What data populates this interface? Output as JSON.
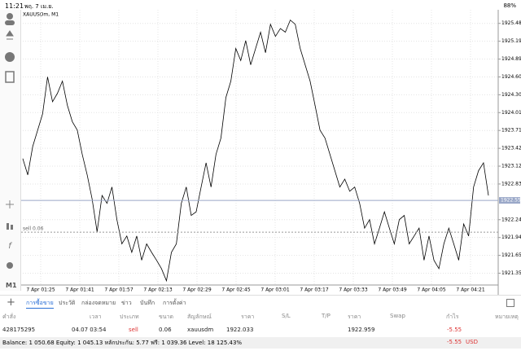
{
  "status_bar": {
    "time": "11:21",
    "date": "พฤ. 7 เม.ย.",
    "battery": "88%"
  },
  "toolbar": {
    "timeframe": "M1"
  },
  "chart": {
    "type": "line",
    "symbol": "XAUUSDm, M1",
    "color": "#000000",
    "values": [
      1923.25,
      1922.98,
      1923.45,
      1923.72,
      1923.99,
      1924.6,
      1924.19,
      1924.33,
      1924.53,
      1924.13,
      1923.86,
      1923.72,
      1923.32,
      1922.98,
      1922.58,
      1922.04,
      1922.64,
      1922.51,
      1922.78,
      1922.24,
      1921.84,
      1921.97,
      1921.7,
      1921.97,
      1921.57,
      1921.84,
      1921.7,
      1921.57,
      1921.43,
      1921.23,
      1921.7,
      1921.84,
      1922.51,
      1922.78,
      1922.31,
      1922.37,
      1922.78,
      1923.18,
      1922.78,
      1923.32,
      1923.59,
      1924.26,
      1924.53,
      1925.07,
      1924.87,
      1925.2,
      1924.8,
      1925.07,
      1925.34,
      1925.0,
      1925.47,
      1925.27,
      1925.4,
      1925.34,
      1925.54,
      1925.47,
      1925.07,
      1924.8,
      1924.53,
      1924.13,
      1923.72,
      1923.59,
      1923.32,
      1923.05,
      1922.78,
      1922.91,
      1922.71,
      1922.78,
      1922.51,
      1922.1,
      1922.24,
      1921.84,
      1922.1,
      1922.37,
      1922.1,
      1921.84,
      1922.24,
      1922.31,
      1921.84,
      1921.97,
      1922.1,
      1921.57,
      1921.97,
      1921.57,
      1921.43,
      1921.84,
      1922.1,
      1921.84,
      1921.57,
      1922.17,
      1921.97,
      1922.78,
      1923.05,
      1923.18,
      1922.64
    ],
    "ylim": [
      1921.16,
      1925.71
    ],
    "yticks": [
      1925.485,
      {
        "value": 1925.19,
        "label": "1925.190"
      },
      1924.895,
      {
        "value": 1924.6,
        "label": "1924.600"
      },
      1924.305,
      {
        "value": 1924.01,
        "label": "1924.010"
      },
      1923.715,
      {
        "value": 1923.42,
        "label": "1923.420"
      },
      1923.125,
      {
        "value": 1922.83,
        "label": "1922.830"
      },
      {
        "value": 1922.24,
        "label": "1922.240"
      },
      1921.945,
      {
        "value": 1921.65,
        "label": "1921.650"
      },
      1921.355
    ],
    "xticks": [
      "7 Apr 01:25",
      "7 Apr 01:41",
      "7 Apr 01:57",
      "7 Apr 02:13",
      "7 Apr 02:29",
      "7 Apr 02:45",
      "7 Apr 03:01",
      "7 Apr 03:17",
      "7 Apr 03:33",
      "7 Apr 03:49",
      "7 Apr 04:05",
      "7 Apr 04:21"
    ],
    "current_price": {
      "value": 1922.559,
      "label": "1922.559"
    },
    "order_line": {
      "value": 1922.033,
      "label": "sell 0.06"
    },
    "grid": true
  },
  "tabs": [
    "การซื้อขาย",
    "ประวัติ",
    "กล่องจดหมาย",
    "ข่าว",
    "บันทึก",
    "การตั้งค่า"
  ],
  "table": {
    "headers": [
      "คำสั่ง",
      "เวลา",
      "ประเภท",
      "ขนาด",
      "สัญลักษณ์",
      "ราคา",
      "S/L",
      "T/P",
      "ราคา",
      "Swap",
      "กำไร",
      "หมายเหตุ"
    ],
    "row": {
      "order": "428175295",
      "time": "04.07 03:54",
      "type": "sell",
      "size": "0.06",
      "symbol": "xauusdm",
      "open_price": "1922.033",
      "price": "1922.959",
      "profit": "-5.55"
    }
  },
  "summary": {
    "text": "Balance: 1 050.68 Equity: 1 045.13 หลักประกัน: 5.77 ฟรี: 1 039.36 Level: 18 125.43%",
    "profit": "-5.55",
    "currency": "USD"
  }
}
